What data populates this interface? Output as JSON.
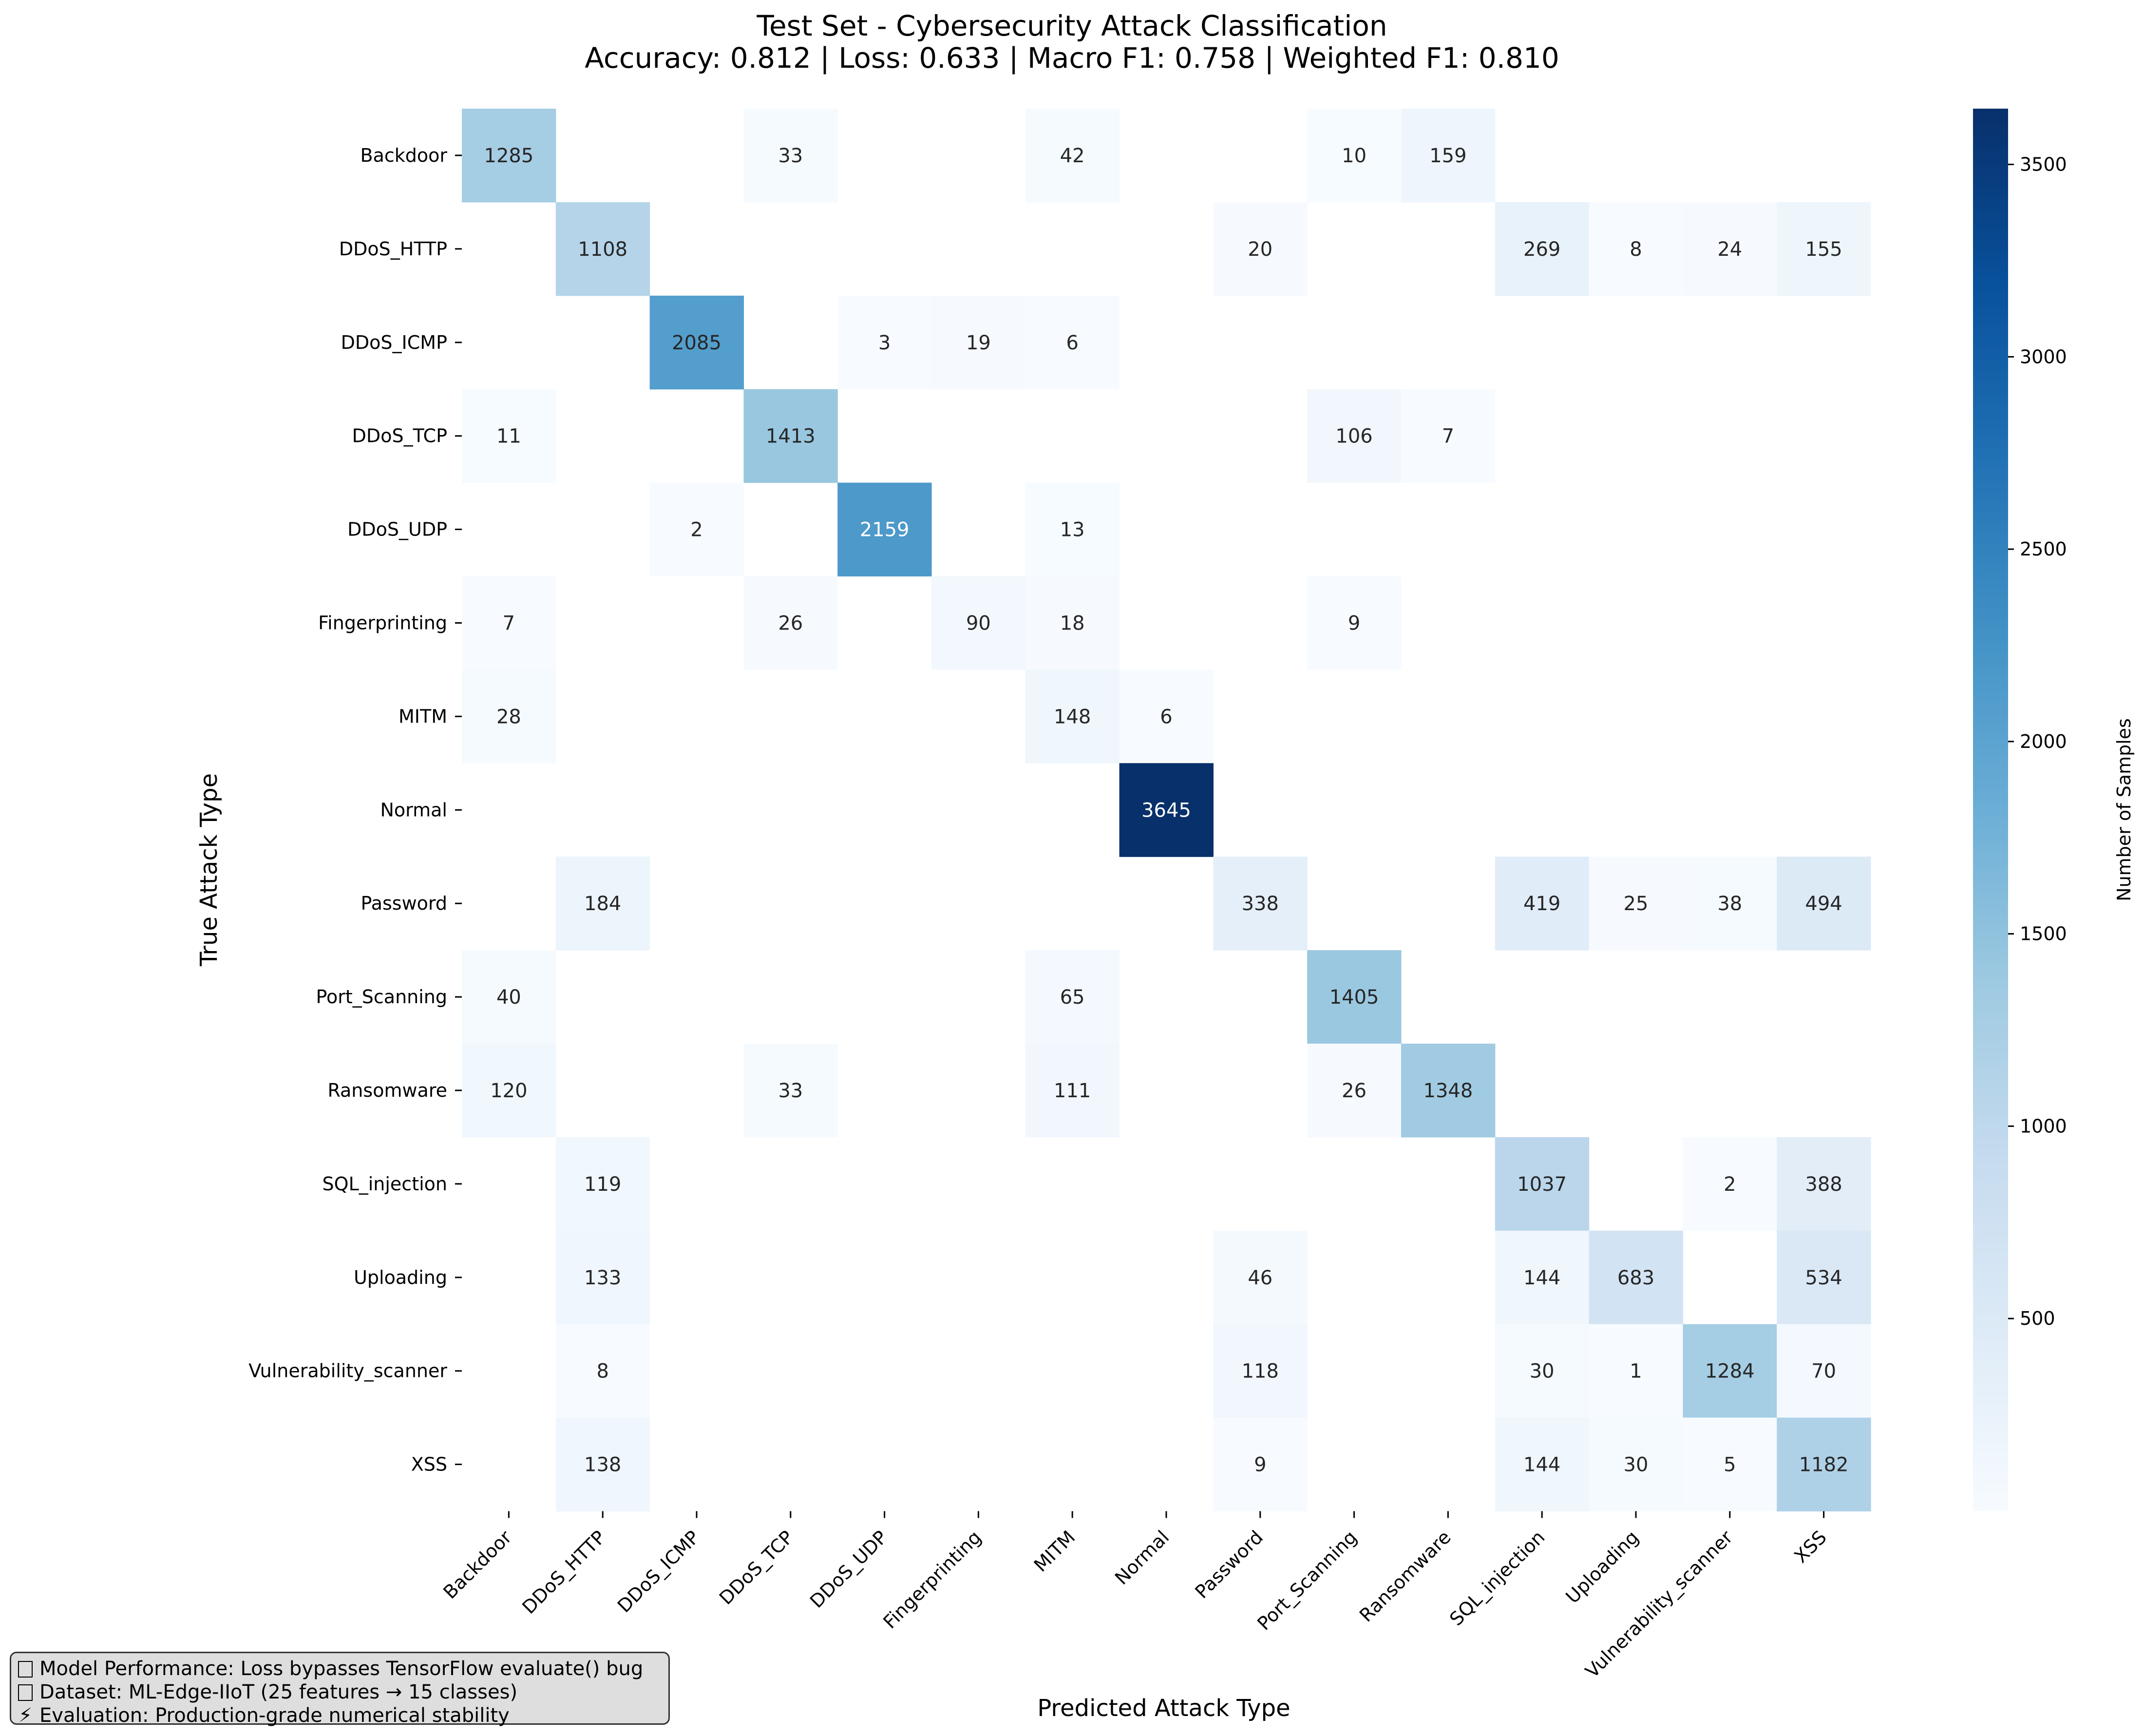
{
  "chart_data": {
    "type": "heatmap",
    "title": "Test Set - Cybersecurity Attack Classification",
    "subtitle": "Accuracy: 0.812 | Loss: 0.633 | Macro F1: 0.758 | Weighted F1: 0.810",
    "xlabel": "Predicted Attack Type",
    "ylabel": "True Attack Type",
    "colorbar_label": "Number of Samples",
    "colormap": "Blues",
    "color_range": [
      0,
      3645
    ],
    "colorbar_ticks": [
      500,
      1000,
      1500,
      2000,
      2500,
      3000,
      3500
    ],
    "colorbar_tick_labels": [
      "500",
      "1000",
      "1500",
      "2000",
      "2500",
      "3000",
      "3500"
    ],
    "x_categories": [
      "Backdoor",
      "DDoS_HTTP",
      "DDoS_ICMP",
      "DDoS_TCP",
      "DDoS_UDP",
      "Fingerprinting",
      "MITM",
      "Normal",
      "Password",
      "Port_Scanning",
      "Ransomware",
      "SQL_injection",
      "Uploading",
      "Vulnerability_scanner",
      "XSS"
    ],
    "y_categories": [
      "Backdoor",
      "DDoS_HTTP",
      "DDoS_ICMP",
      "DDoS_TCP",
      "DDoS_UDP",
      "Fingerprinting",
      "MITM",
      "Normal",
      "Password",
      "Port_Scanning",
      "Ransomware",
      "SQL_injection",
      "Uploading",
      "Vulnerability_scanner",
      "XSS"
    ],
    "matrix": [
      [
        1285,
        0,
        0,
        33,
        0,
        0,
        42,
        0,
        0,
        10,
        159,
        0,
        0,
        0,
        0
      ],
      [
        0,
        1108,
        0,
        0,
        0,
        0,
        0,
        0,
        20,
        0,
        0,
        269,
        8,
        24,
        155
      ],
      [
        0,
        0,
        2085,
        0,
        3,
        19,
        6,
        0,
        0,
        0,
        0,
        0,
        0,
        0,
        0
      ],
      [
        11,
        0,
        0,
        1413,
        0,
        0,
        0,
        0,
        0,
        106,
        7,
        0,
        0,
        0,
        0
      ],
      [
        0,
        0,
        2,
        0,
        2159,
        0,
        13,
        0,
        0,
        0,
        0,
        0,
        0,
        0,
        0
      ],
      [
        7,
        0,
        0,
        26,
        0,
        90,
        18,
        0,
        0,
        9,
        0,
        0,
        0,
        0,
        0
      ],
      [
        28,
        0,
        0,
        0,
        0,
        0,
        148,
        6,
        0,
        0,
        0,
        0,
        0,
        0,
        0
      ],
      [
        0,
        0,
        0,
        0,
        0,
        0,
        0,
        3645,
        0,
        0,
        0,
        0,
        0,
        0,
        0
      ],
      [
        0,
        184,
        0,
        0,
        0,
        0,
        0,
        0,
        338,
        0,
        0,
        419,
        25,
        38,
        494
      ],
      [
        40,
        0,
        0,
        0,
        0,
        0,
        65,
        0,
        0,
        1405,
        0,
        0,
        0,
        0,
        0
      ],
      [
        120,
        0,
        0,
        33,
        0,
        0,
        111,
        0,
        0,
        26,
        1348,
        0,
        0,
        0,
        0
      ],
      [
        0,
        119,
        0,
        0,
        0,
        0,
        0,
        0,
        0,
        0,
        0,
        1037,
        0,
        2,
        388
      ],
      [
        0,
        133,
        0,
        0,
        0,
        0,
        0,
        0,
        46,
        0,
        0,
        144,
        683,
        0,
        534
      ],
      [
        0,
        8,
        0,
        0,
        0,
        0,
        0,
        0,
        118,
        0,
        0,
        30,
        1,
        1284,
        70
      ],
      [
        0,
        138,
        0,
        0,
        0,
        0,
        0,
        0,
        9,
        0,
        0,
        144,
        30,
        5,
        1182
      ]
    ],
    "zero_cells_shown": false,
    "annotations": [
      "Model Performance: Loss bypasses TensorFlow evaluate() bug",
      "Dataset: ML-Edge-IIoT (25 features → 15 classes)",
      "Evaluation: Production-grade numerical stability"
    ],
    "annotation_icons": [
      "unsupported-glyph-icon",
      "unsupported-glyph-icon",
      "lightning-icon"
    ],
    "annotation_bolt_glyph": "⚡"
  }
}
